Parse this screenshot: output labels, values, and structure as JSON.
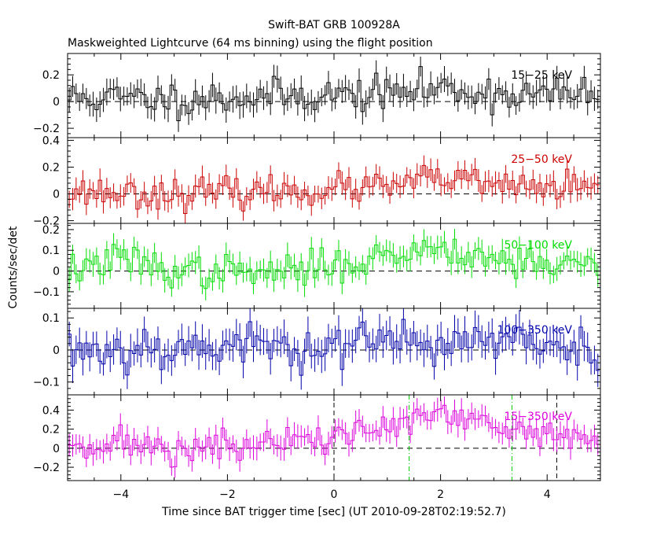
{
  "chart_data": {
    "type": "line",
    "title": "Swift-BAT GRB 100928A",
    "subtitle": "Maskweighted Lightcurve (64 ms binning) using the flight position",
    "xlabel": "Time since BAT trigger time [sec] (UT 2010-09-28T02:19:52.7)",
    "ylabel": "Counts/sec/det",
    "xlim": [
      -5,
      5
    ],
    "x_ticks": [
      -4,
      -2,
      0,
      2,
      4
    ],
    "x_tick_labels": [
      "−4",
      "−2",
      "0",
      "2",
      "4"
    ],
    "bin_width_sec": 0.064,
    "reference_lines": {
      "trigger_time": 0,
      "green_dashdot": [
        1.41,
        3.34
      ],
      "black_dashed": [
        4.18
      ]
    },
    "panels": [
      {
        "name": "15-25",
        "label": "15−25 keV",
        "color": "#000000",
        "ylim": [
          -0.27,
          0.36
        ],
        "y_ticks": [
          -0.2,
          0,
          0.2
        ],
        "y_tick_labels": [
          "−0.2",
          "0",
          "0.2"
        ],
        "amplitude": 0.065,
        "error": 0.085,
        "trend": [
          [
            -5,
            0.03
          ],
          [
            -3,
            0.02
          ],
          [
            -1,
            0.04
          ],
          [
            1,
            0.06
          ],
          [
            2,
            0.1
          ],
          [
            3,
            0.06
          ],
          [
            5,
            0.05
          ]
        ],
        "seed": 11
      },
      {
        "name": "25-50",
        "label": "25−50 keV",
        "color": "#cc0000",
        "ylim": [
          -0.22,
          0.42
        ],
        "y_ticks": [
          -0.2,
          0,
          0.2,
          0.4
        ],
        "y_tick_labels": [
          "−0.2",
          "0",
          "0.2",
          "0.4"
        ],
        "amplitude": 0.055,
        "error": 0.075,
        "trend": [
          [
            -5,
            0.02
          ],
          [
            -3,
            0.0
          ],
          [
            -1,
            0.02
          ],
          [
            1,
            0.05
          ],
          [
            2,
            0.12
          ],
          [
            3,
            0.06
          ],
          [
            5,
            0.04
          ]
        ],
        "seed": 23
      },
      {
        "name": "50-100",
        "label": "50−100 keV",
        "color": "#00dd00",
        "ylim": [
          -0.18,
          0.23
        ],
        "y_ticks": [
          -0.1,
          0,
          0.1,
          0.2
        ],
        "y_tick_labels": [
          "−0.1",
          "0",
          "0.1",
          "0.2"
        ],
        "amplitude": 0.04,
        "error": 0.05,
        "trend": [
          [
            -5,
            0.0
          ],
          [
            -4,
            0.06
          ],
          [
            -3,
            0.0
          ],
          [
            -1,
            -0.01
          ],
          [
            0,
            0.03
          ],
          [
            1,
            0.07
          ],
          [
            2,
            0.12
          ],
          [
            3,
            0.06
          ],
          [
            5,
            0.02
          ]
        ],
        "seed": 37
      },
      {
        "name": "100-350",
        "label": "100−350 keV",
        "color": "#0000aa",
        "ylim": [
          -0.14,
          0.13
        ],
        "y_ticks": [
          -0.1,
          0,
          0.1
        ],
        "y_tick_labels": [
          "−0.1",
          "0",
          "0.1"
        ],
        "amplitude": 0.035,
        "error": 0.045,
        "trend": [
          [
            -5,
            0.0
          ],
          [
            -3,
            0.01
          ],
          [
            0,
            0.015
          ],
          [
            2,
            0.03
          ],
          [
            5,
            0.01
          ]
        ],
        "seed": 53
      },
      {
        "name": "15-350",
        "label": "15−350 keV",
        "color": "#dd00dd",
        "ylim": [
          -0.34,
          0.56
        ],
        "y_ticks": [
          -0.2,
          0,
          0.2,
          0.4
        ],
        "y_tick_labels": [
          "−0.2",
          "0",
          "0.2",
          "0.4"
        ],
        "amplitude": 0.085,
        "error": 0.11,
        "trend": [
          [
            -5,
            0.06
          ],
          [
            -4,
            0.05
          ],
          [
            -3,
            -0.02
          ],
          [
            -1,
            0.05
          ],
          [
            0,
            0.12
          ],
          [
            1,
            0.22
          ],
          [
            2,
            0.35
          ],
          [
            3,
            0.2
          ],
          [
            4,
            0.15
          ],
          [
            5,
            0.08
          ]
        ],
        "seed": 71
      }
    ]
  }
}
